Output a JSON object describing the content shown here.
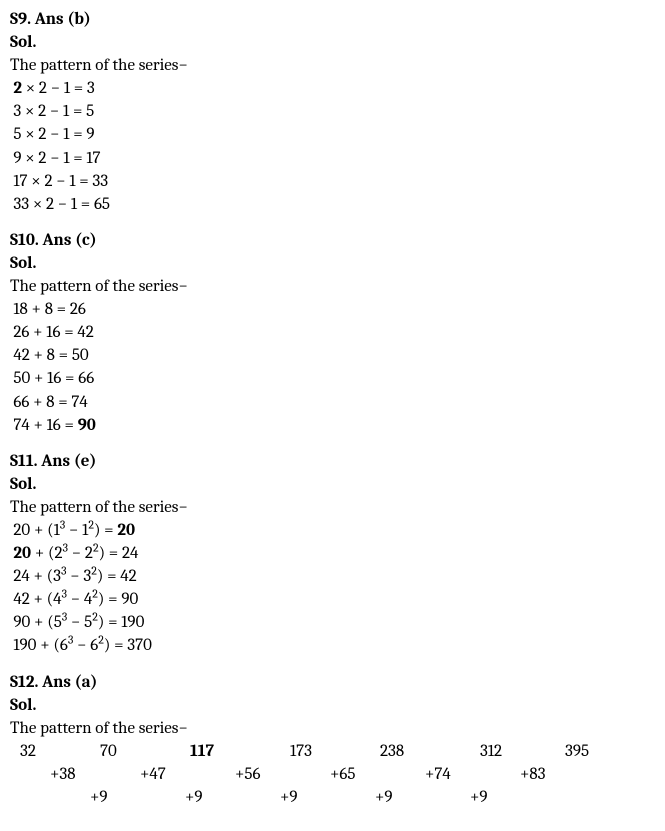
{
  "s9": {
    "header": "S9. Ans (b)",
    "sol": "Sol.",
    "pattern_label": "The pattern of the series−",
    "lines": [
      "**2** × 2 − 1 = 3",
      "3 × 2 − 1 = 5",
      "5 × 2 − 1 = 9",
      "9 × 2 − 1 = 17",
      "17 × 2 − 1 = 33",
      "33 × 2 − 1 = 65"
    ]
  },
  "s10": {
    "header": "S10. Ans (c)",
    "sol": "Sol.",
    "pattern_label": "The pattern of the series−",
    "lines": [
      "18 + 8 = 26",
      "26 + 16 = 42",
      "42 + 8 = 50",
      "50 + 16 = 66",
      "66 + 8 = 74",
      "74 + 16 = **90**"
    ]
  },
  "s11": {
    "header": "S11. Ans (e)",
    "sol": "Sol.",
    "pattern_label": "The pattern of the series−",
    "lines": [
      "20 + (1^3 − 1^2) = **20**",
      "**20** + (2^3 − 2^2) = 24",
      "24 + (3^3 − 3^2) = 42",
      "42 + (4^3 − 4^2) = 90",
      "90 + (5^3 − 5^2) = 190",
      "190 + (6^3 − 6^2) = 370"
    ]
  },
  "s12": {
    "header": "S12. Ans (a)",
    "sol": "Sol.",
    "pattern_label": "The pattern of the series−",
    "row1": [
      "32",
      "70",
      "117",
      "173",
      "238",
      "312",
      "395"
    ],
    "row1_bold_index": 2,
    "row2": [
      "+38",
      "+47",
      "+56",
      "+65",
      "+74",
      "+83"
    ],
    "row3": [
      "+9",
      "+9",
      "+9",
      "+9",
      "+9"
    ],
    "row1_offsets": [
      10,
      90,
      180,
      280,
      370,
      470,
      555
    ],
    "row2_offsets": [
      40,
      130,
      225,
      320,
      415,
      510
    ],
    "row3_offsets": [
      80,
      175,
      270,
      365,
      460
    ]
  }
}
